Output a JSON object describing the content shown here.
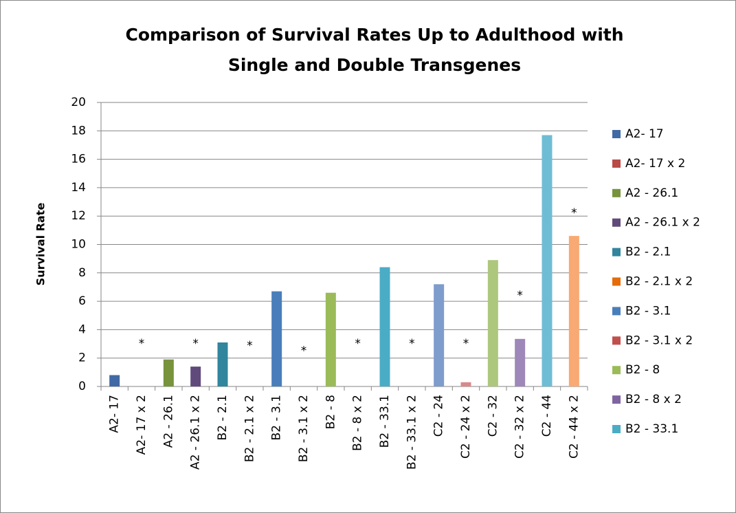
{
  "chart_data": {
    "type": "bar",
    "title": [
      "Comparison of Survival Rates  Up to Adulthood with",
      "Single and Double Transgenes"
    ],
    "y_label": "Survival Rate",
    "categories": [
      "A2- 17",
      "A2- 17 x 2",
      "A2 - 26.1",
      "A2 - 26.1 x 2",
      "B2 - 2.1",
      "B2 - 2.1 x 2",
      "B2 - 3.1",
      "B2 - 3.1 x 2",
      "B2 - 8",
      "B2 - 8 x 2",
      "B2 - 33.1",
      "B2 - 33.1 x 2",
      "C2 - 24",
      "C2 - 24 x 2",
      "C2 - 32",
      "C2 - 32 x 2",
      "C2 - 44",
      "C2 - 44 x 2"
    ],
    "values": [
      0.8,
      0,
      1.9,
      1.4,
      3.1,
      0,
      6.7,
      0,
      6.6,
      0,
      8.4,
      0,
      7.2,
      0.3,
      8.9,
      3.35,
      17.7,
      10.6
    ],
    "colors": [
      "#4169a5",
      "#b94a48",
      "#77933c",
      "#604a7b",
      "#31859c",
      "#e46c0a",
      "#4a7ebb",
      "#c0504d",
      "#9bbb59",
      "#8064a2",
      "#4bacc6",
      "#f79646",
      "#7e9ccc",
      "#d88a89",
      "#adc77d",
      "#9d88b9",
      "#6fbdd5",
      "#f9a973"
    ],
    "annotations": [
      {
        "text": "*",
        "category": 1,
        "y": 3.0
      },
      {
        "text": "*",
        "category": 3,
        "y": 3.0
      },
      {
        "text": "*",
        "category": 5,
        "y": 2.85
      },
      {
        "text": "*",
        "category": 7,
        "y": 2.5
      },
      {
        "text": "*",
        "category": 9,
        "y": 3.0
      },
      {
        "text": "*",
        "category": 11,
        "y": 3.0
      },
      {
        "text": "*",
        "category": 13,
        "y": 3.0
      },
      {
        "text": "*",
        "category": 15,
        "y": 6.4
      },
      {
        "text": "*",
        "category": 17,
        "y": 12.2
      }
    ],
    "ylim": [
      0,
      20
    ],
    "yticks": [
      0,
      2,
      4,
      6,
      8,
      10,
      12,
      14,
      16,
      18,
      20
    ],
    "grid": true,
    "legend": "right"
  }
}
